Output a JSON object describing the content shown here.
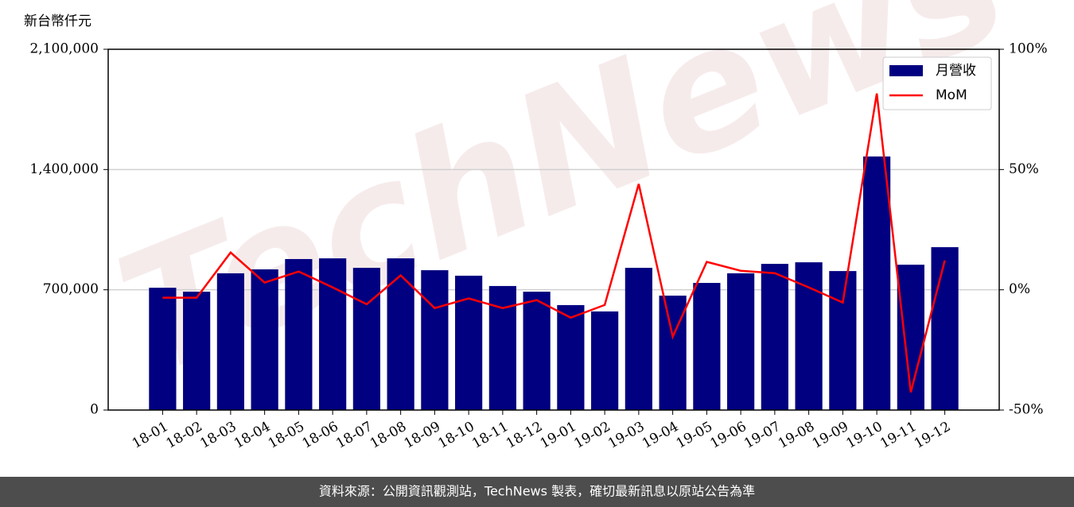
{
  "chart_data": {
    "type": "bar",
    "ylabel": "新台幣仟元",
    "watermark": "TechNews",
    "footer": "資料來源：公開資訊觀測站，TechNews 製表，確切最新訊息以原站公告為準",
    "categories": [
      "18-01",
      "18-02",
      "18-03",
      "18-04",
      "18-05",
      "18-06",
      "18-07",
      "18-08",
      "18-09",
      "18-10",
      "18-11",
      "18-12",
      "19-01",
      "19-02",
      "19-03",
      "19-04",
      "19-05",
      "19-06",
      "19-07",
      "19-08",
      "19-09",
      "19-10",
      "19-11",
      "19-12"
    ],
    "series": [
      {
        "name": "月營收",
        "type": "bar",
        "color": "#000080",
        "values": [
          712000,
          689000,
          796000,
          819000,
          879000,
          883000,
          828000,
          883000,
          814000,
          782000,
          722000,
          689000,
          611000,
          574000,
          828000,
          666000,
          740000,
          796000,
          851000,
          860000,
          809000,
          1476000,
          846000,
          948000
        ]
      },
      {
        "name": "MoM",
        "type": "line",
        "axis": "y2",
        "color": "#ff0000",
        "values": [
          -3.3,
          -3.3,
          15.5,
          3,
          7.6,
          1,
          -6,
          6,
          -7.6,
          -3.6,
          -7.6,
          -4.3,
          -11.6,
          -6.3,
          44,
          -19.5,
          11.6,
          7.9,
          6.9,
          1,
          -5.3,
          81.6,
          -42.6,
          12.2
        ]
      }
    ],
    "ylim": [
      0,
      2100000
    ],
    "yticks": [
      0,
      {
        "value": 700000,
        "label": "700,000"
      },
      {
        "value": 1400000,
        "label": "1,400,000"
      },
      {
        "value": 2100000,
        "label": "2,100,000"
      }
    ],
    "y2lim": [
      -50,
      100
    ],
    "y2ticks": [
      {
        "value": -50,
        "label": "-50%"
      },
      {
        "value": 0,
        "label": "0%"
      },
      {
        "value": 50,
        "label": "50%"
      },
      {
        "value": 100,
        "label": "100%"
      }
    ],
    "grid": true,
    "legend": "upper right"
  }
}
